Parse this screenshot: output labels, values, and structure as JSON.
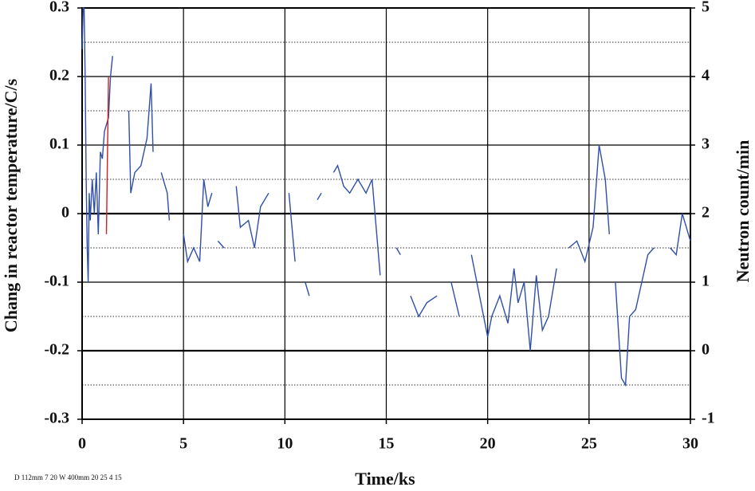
{
  "chart_data": {
    "type": "line",
    "xlabel": "Time/ks",
    "ylabel": "Chang in reactor temperature/C/s",
    "y2label": "Neutron count/min",
    "annotation": "D 112mm 7 20 W 400mm 20 25 4 15",
    "xlim": [
      0,
      30
    ],
    "xticks": [
      0,
      5,
      10,
      15,
      20,
      25,
      30
    ],
    "ylim": [
      -0.3,
      0.3
    ],
    "yticks": [
      -0.3,
      -0.2,
      -0.1,
      0,
      0.1,
      0.2,
      0.3
    ],
    "y2lim": [
      -1,
      5
    ],
    "y2ticks": [
      -1,
      0,
      1,
      2,
      3,
      4,
      5
    ],
    "grid": true,
    "minor_grid": true,
    "series": [
      {
        "color": "#2f4fa8",
        "x": [
          0,
          0.05,
          0.1,
          0.15,
          0.2,
          0.25,
          0.3,
          0.35,
          0.4,
          0.5,
          0.6,
          0.7,
          0.8,
          0.9,
          1.0,
          1.1,
          1.3,
          1.4,
          1.5,
          null,
          2.3,
          2.4,
          2.6,
          2.9,
          3.2,
          3.4,
          3.5,
          null,
          3.9,
          4.2,
          4.3,
          null,
          5.0,
          5.2,
          5.5,
          5.8,
          6.0,
          6.2,
          6.4,
          null,
          6.7,
          7.0,
          null,
          7.6,
          7.8,
          8.2,
          8.5,
          8.8,
          9.2,
          null,
          10.2,
          10.5,
          null,
          11.0,
          11.2,
          null,
          11.6,
          11.8,
          null,
          12.4,
          12.6,
          12.9,
          13.2,
          13.6,
          14.0,
          14.3,
          14.5,
          14.7,
          null,
          15.5,
          15.7,
          null,
          16.2,
          16.6,
          17.0,
          17.5,
          null,
          18.2,
          18.6,
          null,
          19.2,
          19.6,
          20.0,
          20.2,
          20.6,
          21.0,
          21.3,
          21.5,
          21.8,
          22.1,
          22.4,
          22.7,
          23.0,
          23.4,
          null,
          24.0,
          24.4,
          24.8,
          25.2,
          25.5,
          25.8,
          26.0,
          null,
          26.3,
          26.6,
          26.8,
          27.0,
          27.3,
          27.6,
          27.9,
          28.2,
          null,
          29.0,
          29.3,
          29.6,
          30.0
        ],
        "values": [
          0.24,
          0.3,
          0.3,
          0.2,
          0.05,
          -0.05,
          -0.1,
          0.03,
          -0.01,
          0.05,
          0,
          0.06,
          -0.03,
          0.09,
          0.08,
          0.12,
          0.14,
          0.2,
          0.23,
          null,
          0.15,
          0.03,
          0.06,
          0.07,
          0.11,
          0.19,
          0.09,
          null,
          0.06,
          0.03,
          -0.01,
          null,
          -0.03,
          -0.07,
          -0.05,
          -0.07,
          0.05,
          0.01,
          0.03,
          null,
          -0.04,
          -0.05,
          null,
          0.04,
          -0.02,
          -0.01,
          -0.05,
          0.01,
          0.03,
          null,
          0.03,
          -0.07,
          null,
          -0.1,
          -0.12,
          null,
          0.02,
          0.03,
          null,
          0.06,
          0.07,
          0.04,
          0.03,
          0.05,
          0.03,
          0.05,
          -0.02,
          -0.09,
          null,
          -0.05,
          -0.06,
          null,
          -0.12,
          -0.15,
          -0.13,
          -0.12,
          null,
          -0.1,
          -0.15,
          null,
          -0.06,
          -0.12,
          -0.18,
          -0.15,
          -0.12,
          -0.16,
          -0.08,
          -0.13,
          -0.1,
          -0.2,
          -0.09,
          -0.17,
          -0.15,
          -0.08,
          null,
          -0.05,
          -0.04,
          -0.07,
          -0.02,
          0.1,
          0.05,
          -0.03,
          null,
          -0.1,
          -0.24,
          -0.25,
          -0.15,
          -0.14,
          -0.1,
          -0.06,
          -0.05,
          null,
          -0.05,
          -0.06,
          0,
          -0.04
        ]
      },
      {
        "color": "#d42020",
        "x": [
          1.2,
          1.3
        ],
        "values": [
          -0.03,
          0.2
        ]
      }
    ]
  }
}
